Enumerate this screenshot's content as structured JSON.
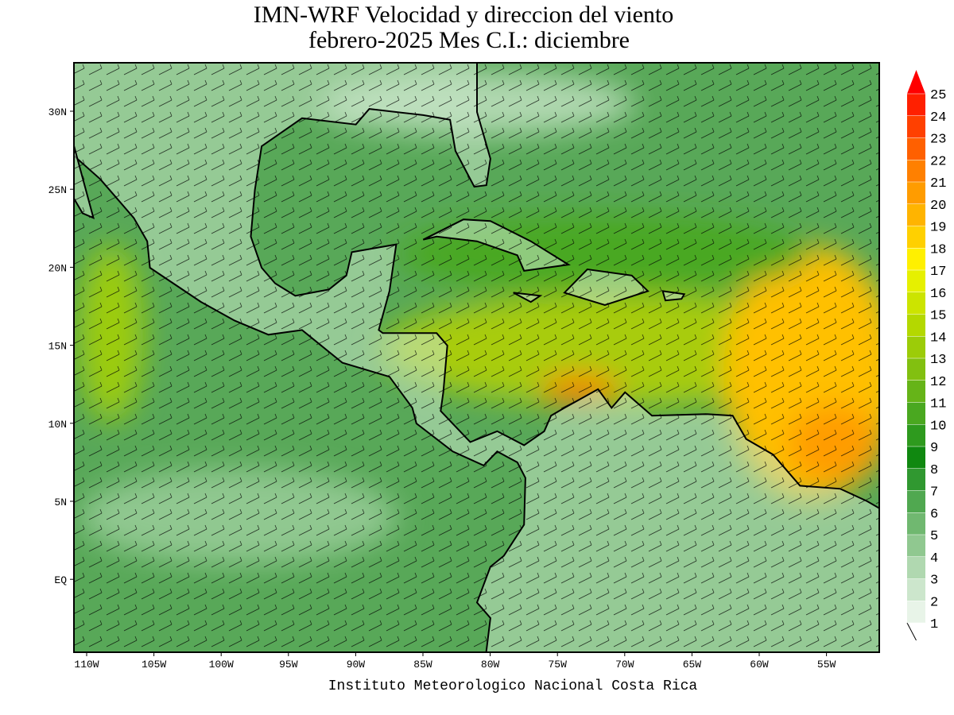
{
  "map": {
    "title": "IMN-WRF Velocidad y direccion del viento",
    "subtitle": "febrero-2025 Mes C.I.: diciembre",
    "lat_labels": [
      "30N",
      "25N",
      "20N",
      "15N",
      "10N",
      "5N",
      "EQ"
    ],
    "lon_labels": [
      "110W",
      "105W",
      "100W",
      "95W",
      "90W",
      "85W",
      "80W",
      "75W",
      "70W",
      "65W",
      "60W",
      "55W"
    ],
    "footer": "Instituto Meteorologico Nacional Costa Rica"
  },
  "colorbar": {
    "labels": [
      "1",
      "2",
      "3",
      "4",
      "5",
      "6",
      "7",
      "8",
      "9",
      "10",
      "11",
      "12",
      "13",
      "14",
      "15",
      "16",
      "17",
      "18",
      "19",
      "20",
      "21",
      "22",
      "23",
      "24",
      "25"
    ],
    "colors": [
      "#e8f4e8",
      "#cce6cc",
      "#b0d8b0",
      "#90c890",
      "#70b870",
      "#50a850",
      "#309830",
      "#108810",
      "#2e9a1e",
      "#4aa820",
      "#66b418",
      "#82c010",
      "#9ccc08",
      "#b4d800",
      "#cce400",
      "#e6f000",
      "#fff000",
      "#ffd000",
      "#ffb400",
      "#ff9c00",
      "#ff8000",
      "#ff6000",
      "#ff4000",
      "#ff2000",
      "#ff0000"
    ]
  }
}
